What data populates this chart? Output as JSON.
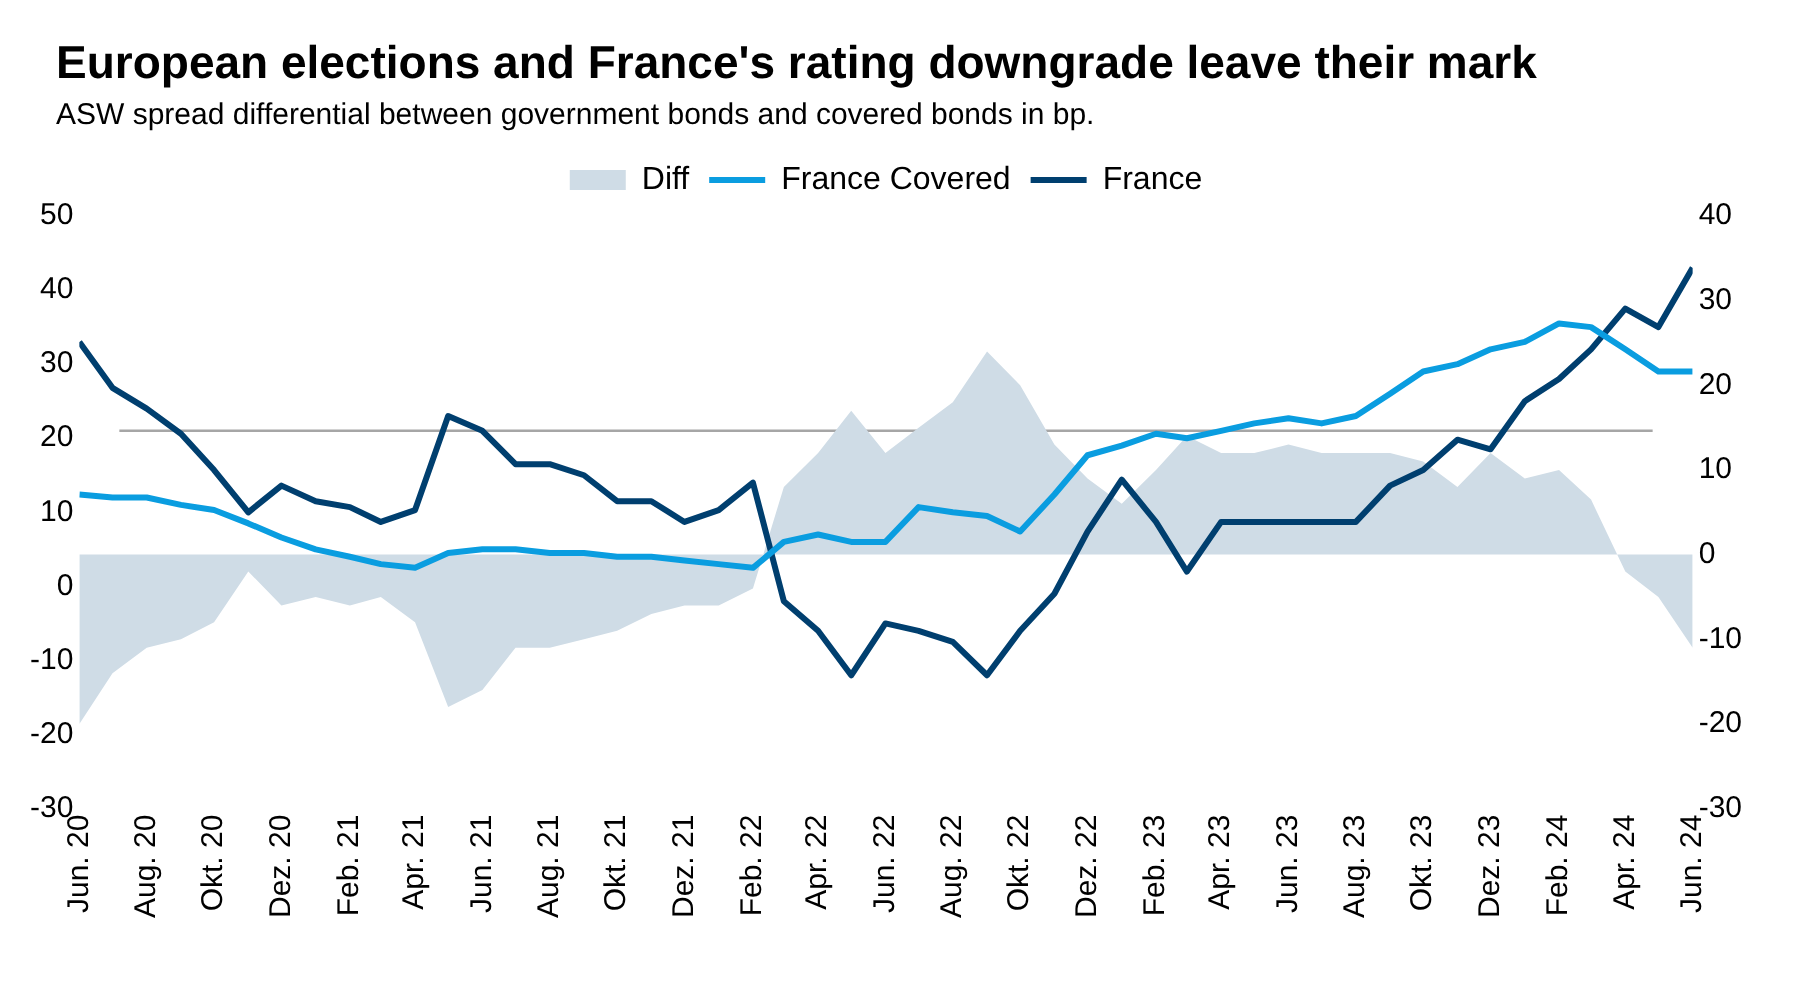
{
  "chart_data": {
    "type": "line",
    "title": "European elections and France's rating downgrade leave their mark",
    "subtitle": "ASW spread differential between government bonds and covered bonds in bp.",
    "x": [
      "2020-06-01",
      "2020-07-01",
      "2020-08-01",
      "2020-09-01",
      "2020-10-01",
      "2020-11-01",
      "2020-12-01",
      "2021-01-01",
      "2021-02-01",
      "2021-03-01",
      "2021-04-01",
      "2021-05-01",
      "2021-06-01",
      "2021-07-01",
      "2021-08-01",
      "2021-09-01",
      "2021-10-01",
      "2021-11-01",
      "2021-12-01",
      "2022-01-01",
      "2022-02-01",
      "2022-03-01",
      "2022-04-01",
      "2022-05-01",
      "2022-06-01",
      "2022-07-01",
      "2022-08-01",
      "2022-09-01",
      "2022-10-01",
      "2022-11-01",
      "2022-12-01",
      "2023-01-01",
      "2023-02-01",
      "2023-03-01",
      "2023-04-01",
      "2023-05-01",
      "2023-06-01",
      "2023-07-01",
      "2023-08-01",
      "2023-09-01",
      "2023-10-01",
      "2023-11-01",
      "2023-12-01",
      "2024-01-01",
      "2024-02-01",
      "2024-03-01",
      "2024-04-01",
      "2024-05-01",
      "2024-06-01"
    ],
    "series": [
      {
        "name": "Diff",
        "type": "area",
        "axis": "y2",
        "color": "#cfdce6",
        "values": [
          -20,
          -14,
          -11,
          -10,
          -8,
          -2,
          -6,
          -5,
          -6,
          -5,
          -8,
          -18,
          -16,
          -11,
          -11,
          -10,
          -9,
          -7,
          -6,
          -6,
          -4,
          8,
          12,
          17,
          12,
          15,
          18,
          24,
          20,
          13,
          9,
          6,
          10,
          14,
          12,
          12,
          13,
          12,
          12,
          12,
          11,
          8,
          12,
          9,
          10,
          6.5,
          -2,
          -5,
          -11
        ]
      },
      {
        "name": "France Covered",
        "color": "#0a9de0",
        "values": [
          12.4,
          12,
          12,
          11,
          10.3,
          8.5,
          6.6,
          5,
          4,
          3,
          2.5,
          4.5,
          5,
          5,
          4.5,
          4.5,
          4,
          4,
          3.5,
          3,
          2.5,
          6,
          7,
          6,
          6,
          10.7,
          10,
          9.5,
          7.4,
          12.4,
          17.7,
          19,
          20.6,
          20,
          21,
          22,
          22.7,
          22,
          23,
          26,
          29,
          30,
          32,
          33,
          35.5,
          35,
          32,
          29,
          29
        ]
      },
      {
        "name": "France",
        "color": "#003f6f",
        "values": [
          33,
          26.8,
          24,
          20.6,
          15.7,
          10,
          13.6,
          11.5,
          10.7,
          8.7,
          10.3,
          23,
          21,
          16.5,
          16.5,
          15,
          11.5,
          11.5,
          8.7,
          10.3,
          14,
          -2,
          -6,
          -12,
          -5,
          -6,
          -7.5,
          -12,
          -6,
          -1,
          7.4,
          14.4,
          8.7,
          2,
          8.7,
          8.7,
          8.7,
          8.7,
          8.7,
          13.6,
          15.7,
          19.8,
          18.5,
          25,
          28,
          32,
          37.5,
          35,
          43
        ]
      }
    ],
    "xlim": [
      "2020-06-01",
      "2024-06-01"
    ],
    "xticks": [
      {
        "value": "2020-06-01",
        "label": "Jun. 20"
      },
      {
        "value": "2020-08-01",
        "label": "Aug. 20"
      },
      {
        "value": "2020-10-01",
        "label": "Okt. 20"
      },
      {
        "value": "2020-12-01",
        "label": "Dez. 20"
      },
      {
        "value": "2021-02-01",
        "label": "Feb. 21"
      },
      {
        "value": "2021-04-01",
        "label": "Apr. 21"
      },
      {
        "value": "2021-06-01",
        "label": "Jun. 21"
      },
      {
        "value": "2021-08-01",
        "label": "Aug. 21"
      },
      {
        "value": "2021-10-01",
        "label": "Okt. 21"
      },
      {
        "value": "2021-12-01",
        "label": "Dez. 21"
      },
      {
        "value": "2022-02-01",
        "label": "Feb. 22"
      },
      {
        "value": "2022-04-01",
        "label": "Apr. 22"
      },
      {
        "value": "2022-06-01",
        "label": "Jun. 22"
      },
      {
        "value": "2022-08-01",
        "label": "Aug. 22"
      },
      {
        "value": "2022-10-01",
        "label": "Okt. 22"
      },
      {
        "value": "2022-12-01",
        "label": "Dez. 22"
      },
      {
        "value": "2023-02-01",
        "label": "Feb. 23"
      },
      {
        "value": "2023-04-01",
        "label": "Apr. 23"
      },
      {
        "value": "2023-06-01",
        "label": "Jun. 23"
      },
      {
        "value": "2023-08-01",
        "label": "Aug. 23"
      },
      {
        "value": "2023-10-01",
        "label": "Okt. 23"
      },
      {
        "value": "2023-12-01",
        "label": "Dez. 23"
      },
      {
        "value": "2024-02-01",
        "label": "Feb. 24"
      },
      {
        "value": "2024-04-01",
        "label": "Apr. 24"
      },
      {
        "value": "2024-06-01",
        "label": "Jun. 24"
      }
    ],
    "ylim": [
      -30,
      50
    ],
    "yticks": [
      -30,
      -20,
      -10,
      0,
      10,
      20,
      30,
      40,
      50
    ],
    "y2lim": [
      -30,
      40
    ],
    "y2ticks": [
      -30,
      -20,
      -10,
      0,
      10,
      20,
      30,
      40
    ],
    "ref_lines": [
      {
        "axis": "y",
        "value": 21,
        "color": "#a6a6a6"
      }
    ],
    "legend": "top",
    "grid": false,
    "marker": "none"
  }
}
